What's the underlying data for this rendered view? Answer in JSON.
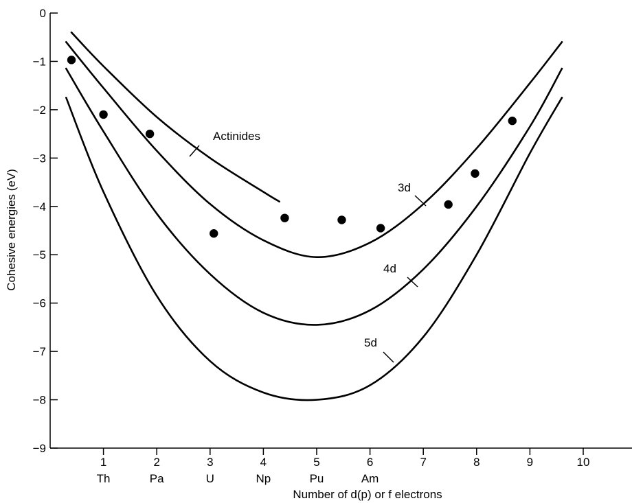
{
  "chart_data": {
    "type": "line",
    "xlabel": "Number of d(p) or f electrons",
    "ylabel": "Cohesive energies (eV)",
    "xlim": [
      0,
      11
    ],
    "ylim": [
      -9,
      0
    ],
    "x_ticks": [
      1,
      2,
      3,
      4,
      5,
      6,
      7,
      8,
      9,
      10
    ],
    "y_ticks": [
      0,
      -1,
      -2,
      -3,
      -4,
      -5,
      -6,
      -7,
      -8,
      -9
    ],
    "element_labels": [
      {
        "x": 1,
        "label": "Th"
      },
      {
        "x": 2,
        "label": "Pa"
      },
      {
        "x": 3,
        "label": "U"
      },
      {
        "x": 4,
        "label": "Np"
      },
      {
        "x": 5,
        "label": "Pu"
      },
      {
        "x": 6,
        "label": "Am"
      }
    ],
    "series": [
      {
        "name": "3d",
        "x": [
          0.3,
          1,
          2,
          3,
          4,
          5,
          6,
          7,
          8,
          9,
          9.6
        ],
        "y": [
          -0.6,
          -1.55,
          -2.85,
          -3.95,
          -4.7,
          -5.05,
          -4.75,
          -3.95,
          -2.8,
          -1.45,
          -0.6
        ]
      },
      {
        "name": "4d",
        "x": [
          0.3,
          1,
          2,
          3,
          4,
          5,
          6,
          7,
          8,
          9,
          9.6
        ],
        "y": [
          -1.15,
          -2.45,
          -4.15,
          -5.4,
          -6.2,
          -6.45,
          -6.15,
          -5.3,
          -4.0,
          -2.35,
          -1.15
        ]
      },
      {
        "name": "5d",
        "x": [
          0.3,
          1,
          2,
          3,
          4,
          5,
          6,
          7,
          8,
          9,
          9.6
        ],
        "y": [
          -1.75,
          -3.7,
          -5.85,
          -7.2,
          -7.85,
          -8.0,
          -7.7,
          -6.7,
          -5.0,
          -2.9,
          -1.75
        ]
      },
      {
        "name": "Actinides",
        "x": [
          0.4,
          1,
          2,
          3,
          4,
          4.3
        ],
        "y": [
          -0.4,
          -1.1,
          -2.15,
          -3.0,
          -3.7,
          -3.9
        ]
      }
    ],
    "points": [
      {
        "x": 0.4,
        "y": -0.97
      },
      {
        "x": 1.0,
        "y": -2.1
      },
      {
        "x": 1.87,
        "y": -2.5
      },
      {
        "x": 3.07,
        "y": -4.56
      },
      {
        "x": 4.4,
        "y": -4.24
      },
      {
        "x": 5.47,
        "y": -4.28
      },
      {
        "x": 6.2,
        "y": -4.45
      },
      {
        "x": 7.47,
        "y": -3.96
      },
      {
        "x": 7.97,
        "y": -3.32
      },
      {
        "x": 8.67,
        "y": -2.23
      }
    ],
    "annotations": [
      {
        "text": "Actinides",
        "series": "Actinides"
      },
      {
        "text": "3d",
        "series": "3d"
      },
      {
        "text": "4d",
        "series": "4d"
      },
      {
        "text": "5d",
        "series": "5d"
      }
    ],
    "grid": false,
    "legend": "none"
  }
}
